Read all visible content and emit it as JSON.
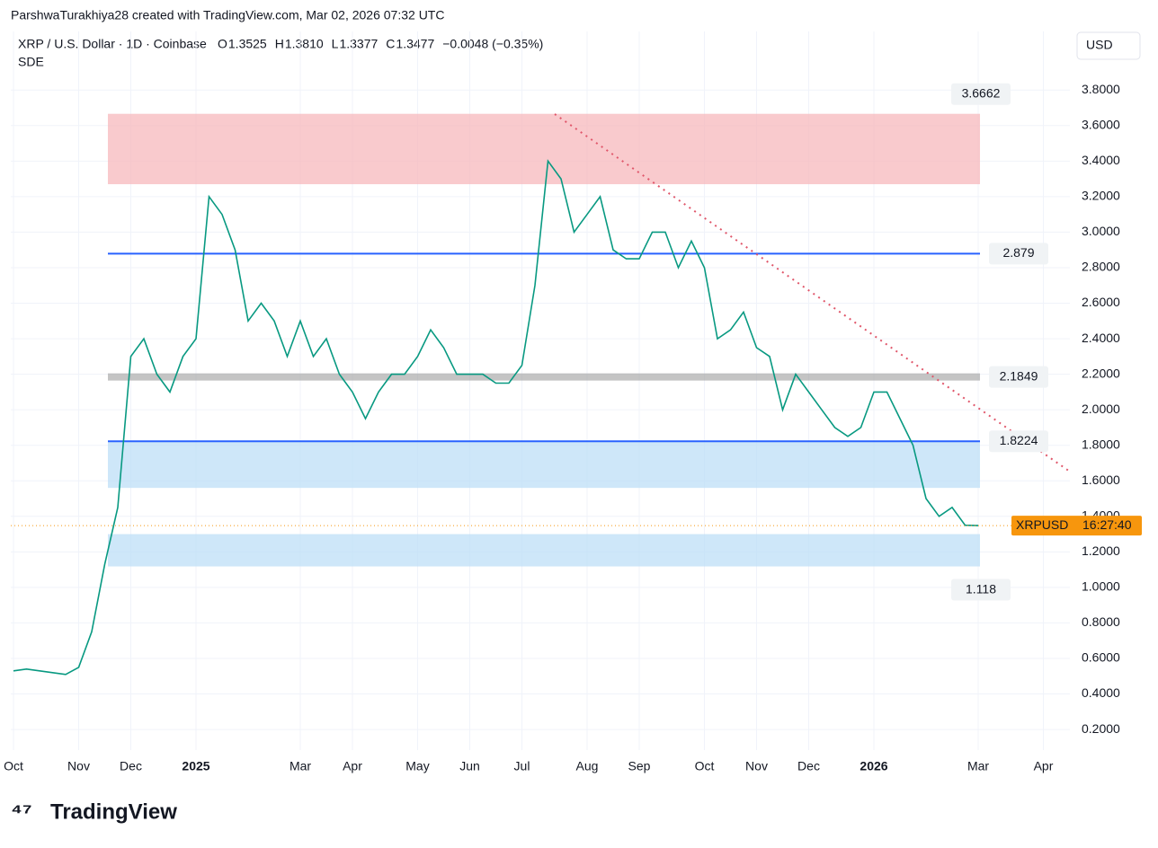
{
  "header": {
    "attribution": "ParshwaTurakhiya28 created with TradingView.com, Mar 02, 2026 07:32 UTC",
    "symbol": "XRP / U.S. Dollar · 1D · Coinbase",
    "ohlc": [
      {
        "key": "O",
        "value": "1.3525"
      },
      {
        "key": "H",
        "value": "1.3810"
      },
      {
        "key": "L",
        "value": "1.3377"
      },
      {
        "key": "C",
        "value": "1.3477"
      }
    ],
    "change": "−0.0048 (−0.35%)",
    "indicator": "SDE",
    "currency": "USD"
  },
  "footer": {
    "brand": "TradingView"
  },
  "chart_data": {
    "type": "line",
    "categories": [
      "Oct",
      null,
      null,
      null,
      null,
      "Nov",
      null,
      null,
      null,
      "Dec",
      null,
      null,
      null,
      null,
      "2025",
      null,
      null,
      null,
      null,
      null,
      null,
      null,
      "Mar",
      null,
      null,
      null,
      "Apr",
      null,
      null,
      null,
      null,
      "May",
      null,
      null,
      null,
      "Jun",
      null,
      null,
      null,
      "Jul",
      null,
      null,
      null,
      null,
      "Aug",
      null,
      null,
      null,
      "Sep",
      null,
      null,
      null,
      null,
      "Oct",
      null,
      null,
      null,
      "Nov",
      null,
      null,
      null,
      "Dec",
      null,
      null,
      null,
      null,
      "2026",
      null,
      null,
      null,
      null,
      null,
      null,
      null,
      "Mar",
      null,
      null,
      null,
      null,
      "Apr"
    ],
    "series": [
      {
        "name": "XRPUSD",
        "color": "#089981",
        "values": [
          0.53,
          0.54,
          0.53,
          0.52,
          0.51,
          0.55,
          0.75,
          1.13,
          1.45,
          2.3,
          2.4,
          2.2,
          2.1,
          2.3,
          2.4,
          3.2,
          3.1,
          2.9,
          2.5,
          2.6,
          2.5,
          2.3,
          2.5,
          2.3,
          2.4,
          2.2,
          2.1,
          1.95,
          2.1,
          2.2,
          2.2,
          2.3,
          2.45,
          2.35,
          2.2,
          2.2,
          2.2,
          2.15,
          2.15,
          2.25,
          2.7,
          3.4,
          3.3,
          3.0,
          3.1,
          3.2,
          2.9,
          2.85,
          2.85,
          3.0,
          3.0,
          2.8,
          2.95,
          2.8,
          2.4,
          2.45,
          2.55,
          2.35,
          2.3,
          2.0,
          2.2,
          2.1,
          2.0,
          1.9,
          1.85,
          1.9,
          2.1,
          2.1,
          1.95,
          1.8,
          1.5,
          1.4,
          1.45,
          1.35,
          1.3477,
          null,
          null,
          null,
          null,
          null
        ]
      }
    ],
    "ylim": [
      0.084,
      4.13
    ],
    "yticks": [
      {
        "value": 0.2,
        "label": "0.2000"
      },
      {
        "value": 0.4,
        "label": "0.4000"
      },
      {
        "value": 0.6,
        "label": "0.6000"
      },
      {
        "value": 0.8,
        "label": "0.8000"
      },
      {
        "value": 1,
        "label": "1.0000"
      },
      {
        "value": 1.2,
        "label": "1.2000"
      },
      {
        "value": 1.4,
        "label": "1.4000"
      },
      {
        "value": 1.6,
        "label": "1.6000"
      },
      {
        "value": 1.8,
        "label": "1.8000"
      },
      {
        "value": 2,
        "label": "2.0000"
      },
      {
        "value": 2.2,
        "label": "2.2000"
      },
      {
        "value": 2.4,
        "label": "2.4000"
      },
      {
        "value": 2.6,
        "label": "2.6000"
      },
      {
        "value": 2.8,
        "label": "2.8000"
      },
      {
        "value": 3,
        "label": "3.0000"
      },
      {
        "value": 3.2,
        "label": "3.2000"
      },
      {
        "value": 3.4,
        "label": "3.4000"
      },
      {
        "value": 3.6,
        "label": "3.6000"
      },
      {
        "value": 3.8,
        "label": "3.8000"
      }
    ],
    "grid": true,
    "zones": [
      {
        "from": 3.27,
        "to": 3.6662,
        "color": "#f7b3b8"
      },
      {
        "from": 1.56,
        "to": 1.8224,
        "color": "#b9ddf7"
      },
      {
        "from": 1.118,
        "to": 1.3,
        "color": "#b9ddf7"
      }
    ],
    "levels": [
      {
        "value": 2.879,
        "color": "#2962ff"
      },
      {
        "value": 1.8224,
        "color": "#2962ff"
      },
      {
        "value": 2.1849,
        "color": "#9e9e9e"
      }
    ],
    "level_labels": [
      3.6662,
      2.879,
      2.1849,
      1.8224,
      1.118
    ],
    "last_price": {
      "value": 1.3477,
      "symbol": "XRPUSD",
      "countdown": "16:27:40",
      "color": "#f7960d"
    }
  }
}
